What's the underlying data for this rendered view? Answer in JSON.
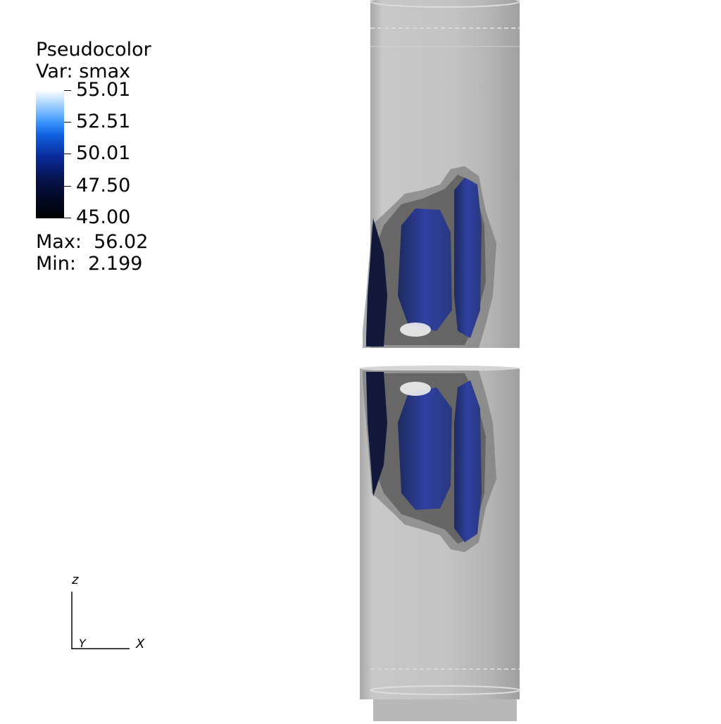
{
  "legend": {
    "title": "Pseudocolor",
    "variable": "Var: smax",
    "ticks": [
      "55.01",
      "52.51",
      "50.01",
      "47.50",
      "45.00"
    ],
    "max": "Max:  56.02",
    "min": "Min:  2.199"
  },
  "triad": {
    "z": "z",
    "y": "Y",
    "x": "X"
  },
  "colors": {
    "cylinder": "#c2c2c2",
    "blob": "#2a3a80",
    "halo": "#555555",
    "background": "#ffffff"
  }
}
